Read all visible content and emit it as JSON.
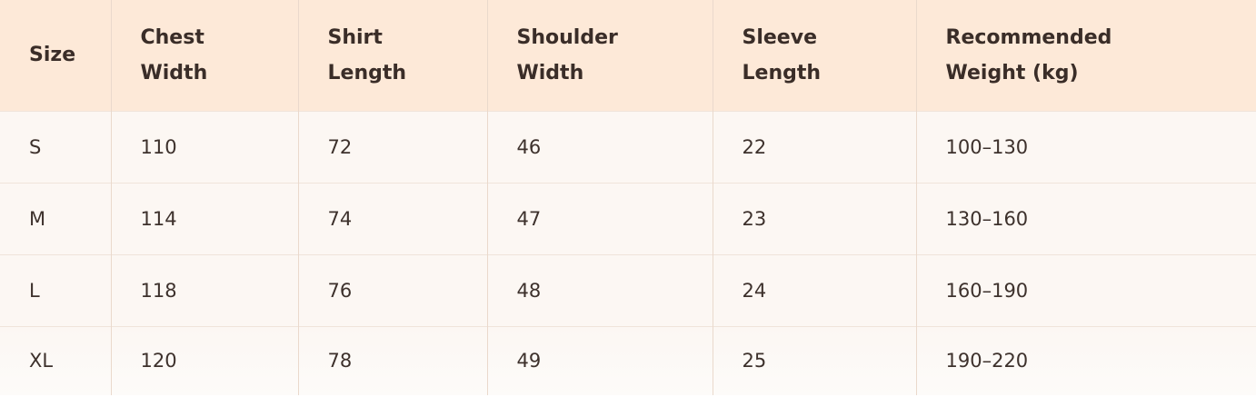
{
  "table": {
    "header": [
      "Size",
      "Chest Width",
      "Shirt Length",
      "Shoulder Width",
      "Sleeve Length",
      "Recommended Weight (kg)"
    ],
    "rows": [
      [
        "S",
        110,
        72,
        46,
        22,
        "100–130"
      ],
      [
        "M",
        114,
        74,
        47,
        23,
        "130–160"
      ],
      [
        "L",
        118,
        76,
        48,
        24,
        "160–190"
      ],
      [
        "XL",
        120,
        78,
        49,
        25,
        "190–220"
      ]
    ]
  }
}
